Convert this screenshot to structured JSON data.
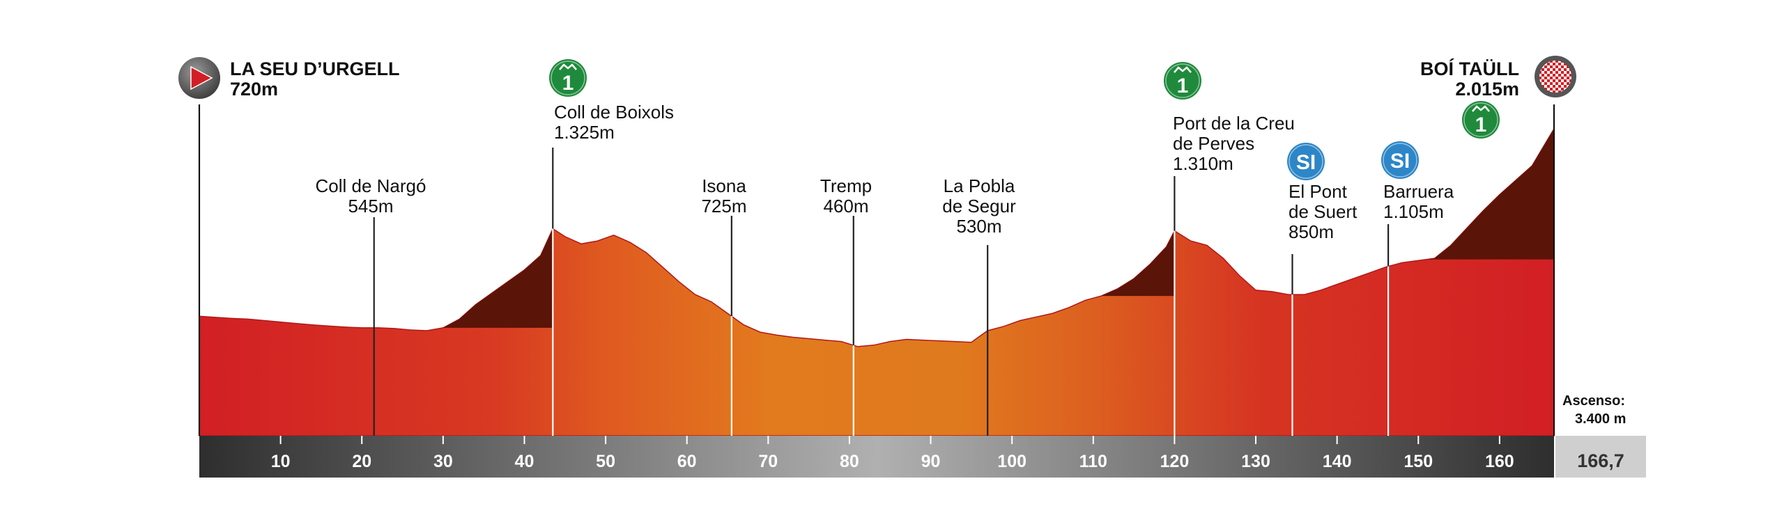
{
  "chart_data": {
    "type": "area",
    "title": "",
    "xlabel": "",
    "ylabel": "",
    "x_unit": "km",
    "xlim": [
      0,
      166.7
    ],
    "ylim": [
      500,
      2015
    ],
    "x_ticks": [
      10,
      20,
      30,
      40,
      50,
      60,
      70,
      80,
      90,
      100,
      110,
      120,
      130,
      140,
      150,
      160
    ],
    "total_distance": "166,7",
    "profile": {
      "km": [
        0,
        2,
        4,
        6,
        8,
        10,
        12,
        14,
        16,
        18,
        20,
        22,
        24,
        26,
        28,
        30,
        32,
        34,
        36,
        38,
        40,
        42,
        43.5,
        45,
        47,
        49,
        51,
        53,
        55,
        57,
        59,
        61,
        63,
        65,
        67,
        69,
        71,
        73,
        75,
        77,
        79,
        81,
        83,
        85,
        87,
        89,
        91,
        93,
        95,
        97,
        99,
        101,
        103,
        105,
        107,
        109,
        111,
        113,
        115,
        117,
        119,
        120,
        122,
        124,
        126,
        128,
        130,
        132,
        134,
        136,
        138,
        140,
        142,
        144,
        146,
        148,
        150,
        152,
        154,
        156,
        158,
        160,
        162,
        164,
        166.7
      ],
      "alt": [
        720,
        712,
        705,
        700,
        690,
        680,
        670,
        660,
        652,
        645,
        640,
        640,
        635,
        625,
        620,
        640,
        700,
        800,
        880,
        960,
        1040,
        1140,
        1325,
        1270,
        1220,
        1240,
        1280,
        1230,
        1160,
        1060,
        960,
        870,
        820,
        740,
        660,
        610,
        590,
        575,
        565,
        555,
        545,
        510,
        520,
        545,
        560,
        555,
        550,
        545,
        540,
        620,
        650,
        690,
        715,
        740,
        780,
        830,
        860,
        910,
        980,
        1080,
        1200,
        1310,
        1240,
        1210,
        1120,
        1000,
        900,
        890,
        870,
        870,
        900,
        940,
        980,
        1020,
        1060,
        1090,
        1105,
        1120,
        1210,
        1330,
        1450,
        1560,
        1660,
        1760,
        2015
      ]
    },
    "climb_category_shade": [
      {
        "from": 30,
        "to": 43.5,
        "category": "1"
      },
      {
        "from": 111,
        "to": 120,
        "category": "1"
      },
      {
        "from": 151,
        "to": 166.7,
        "category": "1"
      }
    ],
    "markers": [
      {
        "km": 0,
        "label": [
          "LA SEU D’URGELL",
          "720m"
        ],
        "icon": "start-flag-icon",
        "bold": true
      },
      {
        "km": 21.5,
        "label": [
          "Coll de Nargó",
          "545m"
        ]
      },
      {
        "km": 43.5,
        "label": [
          "Coll de Boixols",
          "1.325m"
        ],
        "icon": "mountain-cat-1-icon",
        "badge": "1"
      },
      {
        "km": 65.5,
        "label": [
          "Isona",
          "725m"
        ]
      },
      {
        "km": 80.5,
        "label": [
          "Tremp",
          "460m"
        ]
      },
      {
        "km": 97,
        "label": [
          "La Pobla",
          "de Segur",
          "530m"
        ]
      },
      {
        "km": 120,
        "label": [
          "Port de la Creu",
          "de Perves",
          "1.310m"
        ],
        "icon": "mountain-cat-1-icon",
        "badge": "1"
      },
      {
        "km": 134.5,
        "label": [
          "El Pont",
          "de Suert",
          "850m"
        ],
        "icon": "intermediate-sprint-icon",
        "badge": "SI"
      },
      {
        "km": 146.3,
        "label": [
          "Barruera",
          "1.105m"
        ],
        "icon": "intermediate-sprint-icon",
        "badge": "SI"
      },
      {
        "km": 166.7,
        "label": [
          "BOÍ TAÜLL",
          "2.015m"
        ],
        "icon": "finish-flag-icon",
        "bold": true,
        "extra_badge": "1"
      }
    ],
    "ascent": {
      "label": "Ascenso:",
      "value": "3.400 m"
    }
  },
  "colors": {
    "red": "#d42224",
    "orange": "#e0731c",
    "dark_shade": "#5a1408",
    "axis_dark": "#3a3a3a",
    "axis_mid": "#a8a8a8",
    "climb_green": "#1f8a3c",
    "sprint_blue": "#2d86c7",
    "total_box": "#cfcfcf"
  }
}
